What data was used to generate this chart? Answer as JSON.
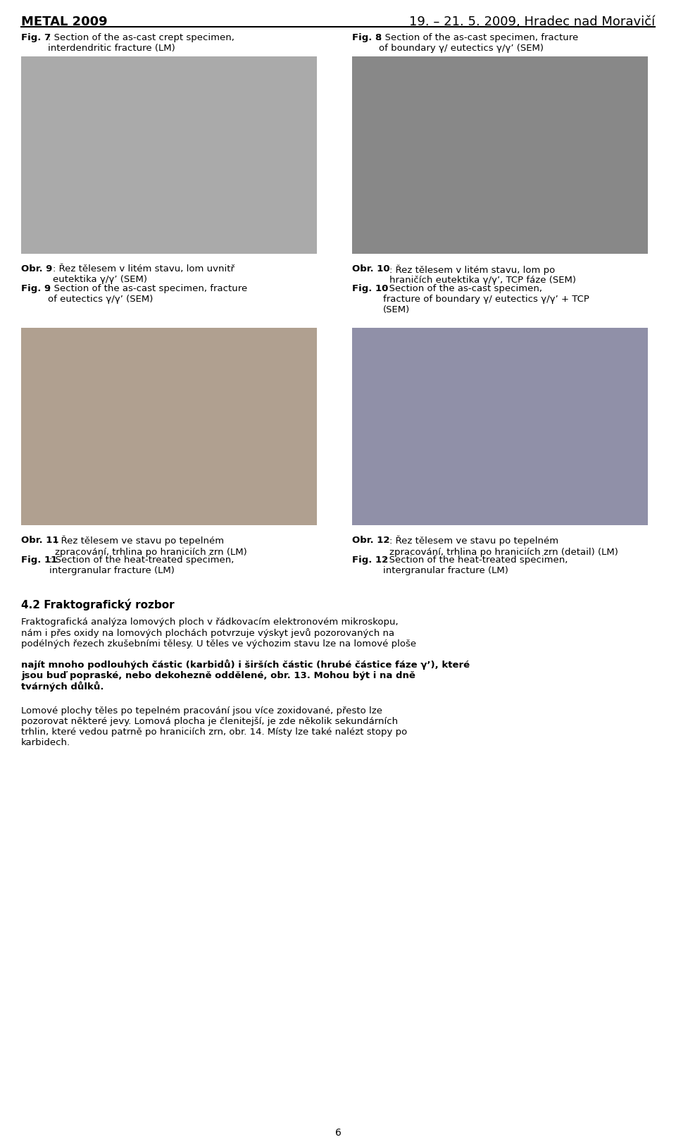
{
  "header_left": "METAL 2009",
  "header_right": "19. – 21. 5. 2009, Hradec nad Moravičí",
  "fig7_caption_bold": "Fig. 7",
  "fig7_caption_rest": ": Section of the as-cast crept specimen,\ninterdendritic fracture (LM)",
  "fig8_caption_bold": "Fig. 8",
  "fig8_caption_rest": ": Section of the as-cast specimen, fracture\nof boundary γ/ eutectics γ/γ’ (SEM)",
  "obr9_caption_bold": "Obr. 9",
  "obr9_caption_rest": ": Řez tělesem v litém stavu, lom uvnitř\neutektika γ/γ’ (SEM)",
  "fig9_caption_bold": "Fig. 9",
  "fig9_caption_rest": ": Section of the as-cast specimen, fracture\nof eutectics γ/γ’ (SEM)",
  "obr10_caption_bold": "Obr. 10",
  "obr10_caption_rest": ": Řez tělesem v litém stavu, lom po\nhraničích eutektika γ/γ’, TCP fáze (SEM)",
  "fig10_caption_bold": "Fig. 10",
  "fig10_caption_rest": ": Section of the as-cast specimen,\nfracture of boundary γ/ eutectics γ/γ’ + TCP\n(SEM)",
  "obr11_caption_bold": "Obr. 11",
  "obr11_caption_rest": ": Řez tělesem ve stavu po tepelném\nzpracování, trhlina po hraniciích zrn (LM)",
  "fig11_caption_bold": "Fig. 11",
  "fig11_caption_rest": ": Section of the heat-treated specimen,\nintergranular fracture (LM)",
  "obr12_caption_bold": "Obr. 12",
  "obr12_caption_rest": ": Řez tělesem ve stavu po tepelném\nzpracování, trhlina po hraniciích zrn (detail) (LM)",
  "fig12_caption_bold": "Fig. 12",
  "fig12_caption_rest": ": Section of the heat-treated specimen,\nintergranular fracture (LM)",
  "section_title": "4.2 Fraktografický rozbor",
  "paragraph1": "Fraktografická analýza lomových ploch v řádkovacím elektronovém mikroskopu,\nnám i přes oxidy na lomových plochách potvrzuje výskyt jevů pozorovaných na\npodélných řezech zkušebními tělesy. U těles ve výchozim stavu lze na lomové ploše",
  "paragraph1_bold": "najít mnoho podlouhých částic (karbidů) i širších částic (hrubé částice fáze γ’), které\njsou buď popraské, nebo dekohezně oddělené, obr. 13. Mohou být i na dně\ntvárných důlků.",
  "paragraph2": "Lomové plochy těles po tepelném pracování jsou více zoxidované, přesto lze\npozorovat některé jevy. Lomová plocha je členitejší, je zde několik sekundárních\ntrhlin, které vedou patrně po hraniciích zrn, obr. 14. Místy lze také nalézt stopy po\nkarbidech.",
  "page_number": "6",
  "bg_color": "#ffffff",
  "text_color": "#000000",
  "header_line_color": "#000000"
}
